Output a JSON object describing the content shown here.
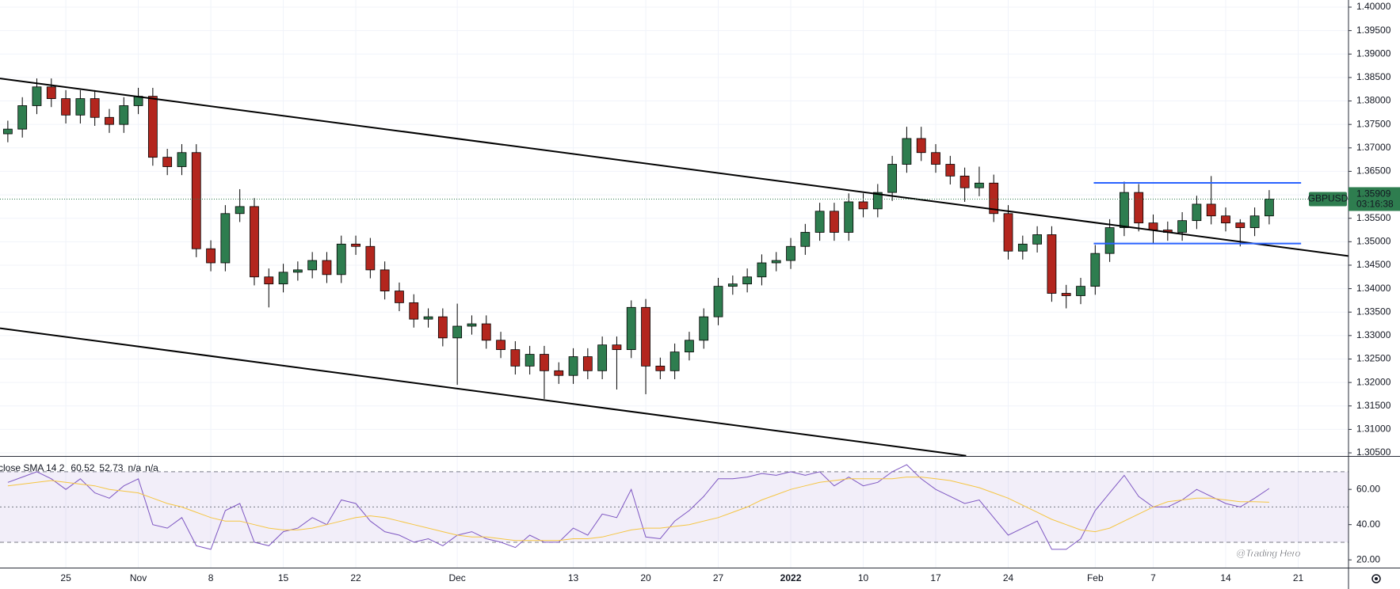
{
  "chart_data": [
    {
      "type": "candlestick",
      "symbol": "GBPUSD",
      "last_price": 1.35909,
      "countdown": "03:16:38",
      "watermark": "@Trading Hero",
      "up_color": "#2e7d4f",
      "down_color": "#b3261e",
      "grid": true,
      "x": [
        -4,
        -3,
        -2,
        -1,
        0,
        1,
        2,
        3,
        4,
        5,
        6,
        7,
        8,
        9,
        10,
        11,
        12,
        13,
        14,
        15,
        16,
        17,
        18,
        19,
        20,
        21,
        22,
        23,
        24,
        25,
        26,
        27,
        28,
        29,
        30,
        31,
        32,
        33,
        34,
        35,
        36,
        37,
        38,
        39,
        40,
        41,
        42,
        43,
        44,
        45,
        46,
        47,
        48,
        49,
        50,
        51,
        52,
        53,
        54,
        55,
        56,
        57,
        58,
        59,
        60,
        61,
        62,
        63,
        64,
        65,
        66,
        67,
        68,
        69,
        70,
        71,
        72,
        73,
        74,
        75,
        76,
        77,
        78,
        79,
        80,
        81,
        82,
        83
      ],
      "open": [
        1.373,
        1.374,
        1.379,
        1.383,
        1.3805,
        1.377,
        1.3805,
        1.3765,
        1.375,
        1.379,
        1.381,
        1.368,
        1.366,
        1.369,
        1.3485,
        1.3455,
        1.356,
        1.3575,
        1.3425,
        1.341,
        1.3435,
        1.344,
        1.346,
        1.343,
        1.3495,
        1.349,
        1.344,
        1.3395,
        1.337,
        1.3335,
        1.334,
        1.3295,
        1.332,
        1.3325,
        1.329,
        1.327,
        1.3235,
        1.326,
        1.3225,
        1.3215,
        1.3255,
        1.3225,
        1.328,
        1.327,
        1.336,
        1.3235,
        1.3225,
        1.3265,
        1.329,
        1.334,
        1.3405,
        1.341,
        1.3425,
        1.3455,
        1.346,
        1.349,
        1.352,
        1.3565,
        1.352,
        1.3585,
        1.357,
        1.3605,
        1.3665,
        1.372,
        1.369,
        1.3665,
        1.364,
        1.3615,
        1.3625,
        1.356,
        1.348,
        1.3495,
        1.3515,
        1.339,
        1.3385,
        1.3405,
        1.3475,
        1.353,
        1.3605,
        1.354,
        1.3525,
        1.352,
        1.3545,
        1.358,
        1.3555,
        1.354,
        1.353,
        1.3555
      ],
      "high": [
        1.3758,
        1.3808,
        1.3848,
        1.3848,
        1.3823,
        1.3823,
        1.3823,
        1.3783,
        1.3808,
        1.3828,
        1.3828,
        1.3698,
        1.3708,
        1.3708,
        1.3503,
        1.3578,
        1.3612,
        1.3593,
        1.3443,
        1.3453,
        1.3458,
        1.3478,
        1.3478,
        1.3513,
        1.3513,
        1.3508,
        1.3458,
        1.3413,
        1.3388,
        1.3358,
        1.3358,
        1.3368,
        1.3343,
        1.3343,
        1.3308,
        1.3288,
        1.3278,
        1.3278,
        1.3243,
        1.3273,
        1.3273,
        1.3298,
        1.3298,
        1.3375,
        1.3378,
        1.3253,
        1.3283,
        1.3308,
        1.3358,
        1.3423,
        1.3428,
        1.3443,
        1.3473,
        1.3478,
        1.3508,
        1.3538,
        1.3583,
        1.3583,
        1.3603,
        1.3603,
        1.3623,
        1.3683,
        1.3745,
        1.3745,
        1.3708,
        1.3683,
        1.3658,
        1.366,
        1.3643,
        1.3578,
        1.3513,
        1.3533,
        1.3533,
        1.3408,
        1.3423,
        1.3493,
        1.3548,
        1.3628,
        1.3623,
        1.3558,
        1.3543,
        1.3563,
        1.3598,
        1.364,
        1.3573,
        1.3548,
        1.3573,
        1.361
      ],
      "low": [
        1.3712,
        1.3722,
        1.3772,
        1.3787,
        1.3752,
        1.3752,
        1.3747,
        1.3732,
        1.3732,
        1.3772,
        1.3662,
        1.3642,
        1.3642,
        1.3467,
        1.3437,
        1.3437,
        1.3542,
        1.3407,
        1.336,
        1.3392,
        1.3417,
        1.3422,
        1.3412,
        1.3412,
        1.3472,
        1.3422,
        1.3377,
        1.3352,
        1.3317,
        1.3317,
        1.3277,
        1.3195,
        1.3302,
        1.3272,
        1.3252,
        1.3217,
        1.3217,
        1.3165,
        1.3197,
        1.3197,
        1.3207,
        1.3207,
        1.3185,
        1.3252,
        1.3175,
        1.3207,
        1.3207,
        1.3247,
        1.3272,
        1.3322,
        1.3387,
        1.3392,
        1.3407,
        1.3437,
        1.3442,
        1.3472,
        1.3502,
        1.3502,
        1.3502,
        1.3552,
        1.3552,
        1.3587,
        1.3647,
        1.3672,
        1.3647,
        1.3622,
        1.3585,
        1.3597,
        1.3542,
        1.3462,
        1.3462,
        1.3477,
        1.3372,
        1.3358,
        1.3367,
        1.3387,
        1.3457,
        1.3512,
        1.3522,
        1.3495,
        1.3502,
        1.3502,
        1.3527,
        1.3537,
        1.3522,
        1.349,
        1.3512,
        1.3537
      ],
      "close": [
        1.374,
        1.379,
        1.383,
        1.3805,
        1.377,
        1.3805,
        1.3765,
        1.375,
        1.379,
        1.381,
        1.368,
        1.366,
        1.369,
        1.3485,
        1.3455,
        1.356,
        1.3575,
        1.3425,
        1.341,
        1.3435,
        1.344,
        1.346,
        1.343,
        1.3495,
        1.349,
        1.344,
        1.3395,
        1.337,
        1.3335,
        1.334,
        1.3295,
        1.332,
        1.3325,
        1.329,
        1.327,
        1.3235,
        1.326,
        1.3225,
        1.3215,
        1.3255,
        1.3225,
        1.328,
        1.327,
        1.336,
        1.3235,
        1.3225,
        1.3265,
        1.329,
        1.334,
        1.3405,
        1.341,
        1.3425,
        1.3455,
        1.346,
        1.349,
        1.352,
        1.3565,
        1.352,
        1.3585,
        1.357,
        1.3605,
        1.3665,
        1.372,
        1.369,
        1.3665,
        1.364,
        1.3615,
        1.3625,
        1.356,
        1.348,
        1.3495,
        1.3515,
        1.339,
        1.3385,
        1.3405,
        1.3475,
        1.353,
        1.3605,
        1.354,
        1.3525,
        1.352,
        1.3545,
        1.358,
        1.3555,
        1.354,
        1.353,
        1.3555,
        1.35909
      ],
      "drawings": [
        {
          "color": "#000000",
          "x": [
            -4.54,
            88.47
          ],
          "y": [
            1.38479,
            1.34696
          ]
        },
        {
          "color": "#000000",
          "x": [
            -4.54,
            62.1
          ],
          "y": [
            1.33156,
            1.30437
          ]
        },
        {
          "color": "#2962ff",
          "x": [
            70.9,
            85.2
          ],
          "y": [
            1.36255,
            1.36255
          ]
        },
        {
          "color": "#2962ff",
          "x": [
            70.9,
            85.2
          ],
          "y": [
            1.34962,
            1.34962
          ]
        }
      ],
      "xlim": [
        -4.54,
        88.47
      ],
      "xticks": [
        {
          "value": 0,
          "label": "25"
        },
        {
          "value": 5,
          "label": "Nov"
        },
        {
          "value": 10,
          "label": "8"
        },
        {
          "value": 15,
          "label": "15"
        },
        {
          "value": 20,
          "label": "22"
        },
        {
          "value": 27,
          "label": "Dec"
        },
        {
          "value": 35,
          "label": "13"
        },
        {
          "value": 40,
          "label": "20"
        },
        {
          "value": 45,
          "label": "27"
        },
        {
          "value": 50,
          "label": "2022"
        },
        {
          "value": 55,
          "label": "10"
        },
        {
          "value": 60,
          "label": "17"
        },
        {
          "value": 65,
          "label": "24"
        },
        {
          "value": 71,
          "label": "Feb"
        },
        {
          "value": 75,
          "label": "7"
        },
        {
          "value": 80,
          "label": "14"
        },
        {
          "value": 85,
          "label": "21"
        }
      ],
      "ylim": [
        1.30433,
        1.40152
      ],
      "yticks": [
        {
          "value": 1.305,
          "label": "1.30500"
        },
        {
          "value": 1.31,
          "label": "1.31000"
        },
        {
          "value": 1.315,
          "label": "1.31500"
        },
        {
          "value": 1.32,
          "label": "1.32000"
        },
        {
          "value": 1.325,
          "label": "1.32500"
        },
        {
          "value": 1.33,
          "label": "1.33000"
        },
        {
          "value": 1.335,
          "label": "1.33500"
        },
        {
          "value": 1.34,
          "label": "1.34000"
        },
        {
          "value": 1.345,
          "label": "1.34500"
        },
        {
          "value": 1.35,
          "label": "1.35000"
        },
        {
          "value": 1.355,
          "label": "1.35500"
        },
        {
          "value": 1.36,
          "label": "1.36000"
        },
        {
          "value": 1.365,
          "label": "1.36500"
        },
        {
          "value": 1.37,
          "label": "1.37000"
        },
        {
          "value": 1.375,
          "label": "1.37500"
        },
        {
          "value": 1.38,
          "label": "1.38000"
        },
        {
          "value": 1.385,
          "label": "1.38500"
        },
        {
          "value": 1.39,
          "label": "1.39000"
        },
        {
          "value": 1.395,
          "label": "1.39500"
        },
        {
          "value": 1.4,
          "label": "1.40000"
        }
      ]
    },
    {
      "type": "line",
      "title": "close SMA 14 2",
      "extra_labels": [
        "n/a",
        "n/a"
      ],
      "levels": [
        70,
        50,
        30
      ],
      "series": [
        {
          "color": "#7e57c2",
          "values": [
            64,
            67,
            70,
            66,
            60,
            66,
            58,
            55,
            62,
            66,
            40,
            38,
            44,
            28,
            26,
            48,
            52,
            30,
            28,
            36,
            38,
            44,
            40,
            54,
            52,
            42,
            36,
            34,
            30,
            32,
            28,
            34,
            36,
            32,
            30,
            27,
            34,
            30,
            30,
            38,
            34,
            46,
            44,
            60,
            33,
            32,
            42,
            48,
            56,
            66,
            66,
            67,
            69,
            68,
            70,
            68,
            70,
            62,
            67,
            62,
            64,
            70,
            74,
            66,
            60,
            56,
            52,
            54,
            44,
            34,
            38,
            42,
            26,
            26,
            32,
            48,
            58,
            68,
            56,
            50,
            50,
            54,
            60,
            56,
            52,
            50,
            55,
            60.52
          ]
        },
        {
          "color": "#f5c542",
          "values": [
            62,
            63,
            64,
            65,
            64,
            63,
            62,
            60,
            59,
            58,
            55,
            52,
            50,
            47,
            44,
            42,
            42,
            40,
            38,
            37,
            37,
            38,
            40,
            42,
            44,
            45,
            44,
            42,
            40,
            38,
            36,
            34,
            33,
            33,
            32,
            31,
            31,
            31,
            31,
            32,
            32,
            33,
            35,
            37,
            38,
            38,
            39,
            40,
            42,
            44,
            47,
            50,
            54,
            57,
            60,
            62,
            64,
            65,
            66,
            66,
            66,
            66,
            67,
            67,
            66,
            65,
            63,
            61,
            58,
            55,
            51,
            47,
            43,
            40,
            37,
            36,
            38,
            42,
            46,
            50,
            53,
            54,
            55,
            55,
            54,
            53,
            53,
            52.73
          ]
        }
      ],
      "ylim": [
        15.6,
        78.5
      ],
      "yticks": [
        {
          "value": 20,
          "label": "20.00"
        },
        {
          "value": 40,
          "label": "40.00"
        },
        {
          "value": 60,
          "label": "60.00"
        }
      ]
    }
  ]
}
